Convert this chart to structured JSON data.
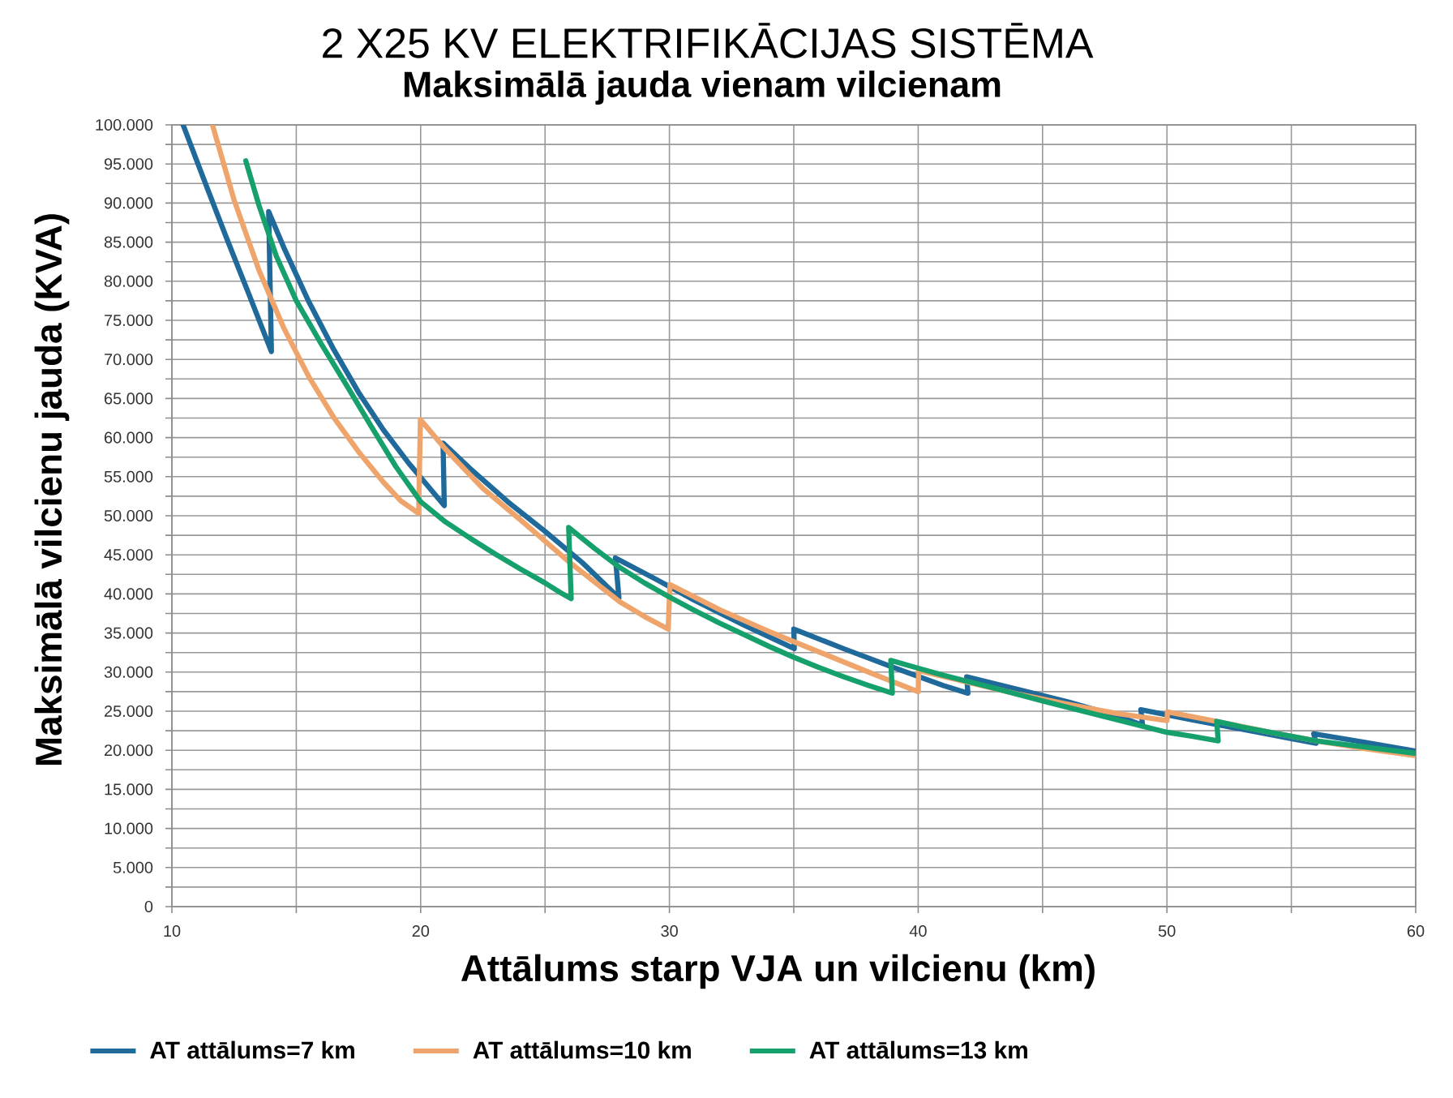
{
  "chart_data": {
    "type": "line",
    "title": "2 X25 KV ELEKTRIFIKĀCIJAS SISTĒMA",
    "subtitle": "Maksimālā jauda vienam vilcienam",
    "xlabel": "Attālums starp VJA un vilcienu (km)",
    "ylabel": "Maksimālā vilcienu jauda (KVA)",
    "xlim": [
      10,
      60
    ],
    "xticks": [
      10,
      {
        "value": 15,
        "label": null
      },
      20,
      {
        "value": 25,
        "label": null
      },
      30,
      {
        "value": 35,
        "label": null
      },
      40,
      {
        "value": 45,
        "label": null
      },
      50,
      {
        "value": 55,
        "label": null
      },
      60
    ],
    "ylim": [
      0,
      100000
    ],
    "yticks": [
      0,
      {
        "value": 2500,
        "label": null
      },
      {
        "value": 5000,
        "label": "5.000"
      },
      {
        "value": 7500,
        "label": null
      },
      {
        "value": 10000,
        "label": "10.000"
      },
      {
        "value": 12500,
        "label": null
      },
      {
        "value": 15000,
        "label": "15.000"
      },
      {
        "value": 17500,
        "label": null
      },
      {
        "value": 20000,
        "label": "20.000"
      },
      {
        "value": 22500,
        "label": null
      },
      {
        "value": 25000,
        "label": "25.000"
      },
      {
        "value": 27500,
        "label": null
      },
      {
        "value": 30000,
        "label": "30.000"
      },
      {
        "value": 32500,
        "label": null
      },
      {
        "value": 35000,
        "label": "35.000"
      },
      {
        "value": 37500,
        "label": null
      },
      {
        "value": 40000,
        "label": "40.000"
      },
      {
        "value": 42500,
        "label": null
      },
      {
        "value": 45000,
        "label": "45.000"
      },
      {
        "value": 47500,
        "label": null
      },
      {
        "value": 50000,
        "label": "50.000"
      },
      {
        "value": 52500,
        "label": null
      },
      {
        "value": 55000,
        "label": "55.000"
      },
      {
        "value": 57500,
        "label": null
      },
      {
        "value": 60000,
        "label": "60.000"
      },
      {
        "value": 62500,
        "label": null
      },
      {
        "value": 65000,
        "label": "65.000"
      },
      {
        "value": 67500,
        "label": null
      },
      {
        "value": 70000,
        "label": "70.000"
      },
      {
        "value": 72500,
        "label": null
      },
      {
        "value": 75000,
        "label": "75.000"
      },
      {
        "value": 77500,
        "label": null
      },
      {
        "value": 80000,
        "label": "80.000"
      },
      {
        "value": 82500,
        "label": null
      },
      {
        "value": 85000,
        "label": "85.000"
      },
      {
        "value": 87500,
        "label": null
      },
      {
        "value": 90000,
        "label": "90.000"
      },
      {
        "value": 92500,
        "label": null
      },
      {
        "value": 95000,
        "label": "95.000"
      },
      {
        "value": 97500,
        "label": null
      },
      {
        "value": 100000,
        "label": "100.000"
      }
    ],
    "grid": true,
    "legend": "bottom",
    "series": [
      {
        "name": "AT attālums=7 km",
        "color": "#1f6a9a",
        "x": [
          10.45,
          11.3,
          12.2,
          13.1,
          14.0,
          13.89,
          14.5,
          15.5,
          16.5,
          17.5,
          18.5,
          19.5,
          20.5,
          20.95,
          20.9,
          22,
          23.5,
          25,
          26.5,
          27.97,
          27.83,
          29.5,
          31,
          33,
          35.02,
          35,
          37,
          39,
          41,
          42,
          41.95,
          44,
          46,
          48,
          49.02,
          48.95,
          51,
          53,
          55,
          56,
          55.9,
          58,
          60
        ],
        "values": [
          100000,
          92900,
          85500,
          78300,
          71000,
          88900,
          84300,
          77400,
          71300,
          65800,
          61000,
          56800,
          53000,
          51300,
          59300,
          56000,
          51800,
          48000,
          44000,
          39500,
          44600,
          41800,
          39200,
          36000,
          33000,
          35500,
          33000,
          30600,
          28300,
          27300,
          29400,
          27800,
          26200,
          24400,
          23200,
          25200,
          23900,
          22700,
          21500,
          20900,
          22100,
          21000,
          19900
        ]
      },
      {
        "name": "AT attālums=10 km",
        "color": "#eea46b",
        "x": [
          11.63,
          12.5,
          13.5,
          14.5,
          15.5,
          16.5,
          17.5,
          18.5,
          19.2,
          19.92,
          19.99,
          21,
          22.5,
          24,
          26,
          28,
          29,
          29.95,
          30.02,
          32,
          34,
          36,
          38,
          40,
          40.02,
          42,
          44,
          46,
          48,
          50,
          50.02,
          52,
          54,
          56,
          58,
          60
        ],
        "values": [
          100000,
          90400,
          81400,
          74000,
          67800,
          62600,
          58200,
          54300,
          51900,
          50300,
          62300,
          58500,
          53500,
          49500,
          44000,
          39000,
          37100,
          35500,
          41200,
          38000,
          35200,
          32600,
          30000,
          27500,
          30200,
          28700,
          27200,
          25900,
          24700,
          23800,
          24900,
          23700,
          22400,
          21200,
          20200,
          19300
        ]
      },
      {
        "name": "AT attālums=13 km",
        "color": "#16a06c",
        "x": [
          12.97,
          13.5,
          14.2,
          15,
          16,
          17,
          18,
          19,
          20,
          21,
          22,
          23,
          24,
          25,
          25.6,
          26.05,
          25.95,
          27,
          28,
          29,
          30,
          31,
          32,
          33,
          34,
          35,
          36,
          37,
          38,
          38.96,
          38.9,
          40,
          41,
          43,
          45,
          47,
          49,
          50,
          51,
          52.06,
          52,
          53,
          54,
          56,
          58,
          60
        ],
        "values": [
          95400,
          89700,
          83200,
          77500,
          72000,
          66800,
          61500,
          56300,
          51800,
          49200,
          47100,
          45100,
          43200,
          41400,
          40200,
          39400,
          48500,
          45800,
          43400,
          41400,
          39600,
          37900,
          36300,
          34800,
          33300,
          31900,
          30600,
          29400,
          28300,
          27300,
          31500,
          30500,
          29600,
          28000,
          26300,
          24700,
          23100,
          22300,
          21800,
          21200,
          23700,
          23000,
          22400,
          21200,
          20400,
          19600
        ]
      }
    ]
  }
}
